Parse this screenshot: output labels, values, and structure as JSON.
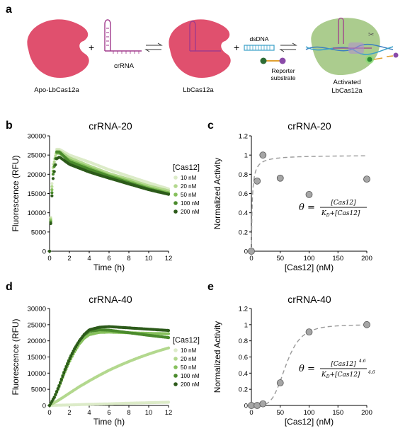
{
  "panels": {
    "a": "a",
    "b": "b",
    "c": "c",
    "d": "d",
    "e": "e"
  },
  "schematic": {
    "apo_label": "Apo-LbCas12a",
    "crrna_label": "crRNA",
    "lbcas_label": "LbCas12a",
    "dsdna_label": "dsDNA",
    "reporter_label_1": "Reporter",
    "reporter_label_2": "substrate",
    "activated_label_1": "Activated",
    "activated_label_2": "LbCas12a",
    "plus": "+",
    "colors": {
      "cas_pink": "#e0506e",
      "activated_green": "#9cc37a",
      "crrna_purple": "#a03a8c",
      "dsdna_blue": "#3aa0c8"
    }
  },
  "legend_title": "[Cas12]",
  "legend_entries": [
    "10 nM",
    "20 nM",
    "50 nM",
    "100 nM",
    "200 nM"
  ],
  "series_colors": [
    "#dcebc8",
    "#b3d88e",
    "#86c05c",
    "#4a8a2c",
    "#2c5a1a"
  ],
  "chart_data": [
    {
      "id": "b",
      "type": "scatter",
      "title": "crRNA-20",
      "xlabel": "Time (h)",
      "ylabel": "Fluorescence (RFU)",
      "xlim": [
        0,
        12
      ],
      "ylim": [
        0,
        30000
      ],
      "xticks": [
        0,
        2,
        4,
        6,
        8,
        10,
        12
      ],
      "yticks": [
        0,
        5000,
        10000,
        15000,
        20000,
        25000,
        30000
      ],
      "series": [
        {
          "name": "10 nM",
          "x": [
            0,
            0.3,
            0.7,
            1.0,
            2,
            4,
            6,
            8,
            10,
            12
          ],
          "y": [
            0,
            22000,
            26500,
            26500,
            25000,
            23200,
            21200,
            19500,
            17800,
            16200
          ]
        },
        {
          "name": "20 nM",
          "x": [
            0,
            0.3,
            0.7,
            1.0,
            2,
            4,
            6,
            8,
            10,
            12
          ],
          "y": [
            0,
            21000,
            26000,
            26000,
            24300,
            22200,
            20200,
            18700,
            17000,
            15700
          ]
        },
        {
          "name": "50 nM",
          "x": [
            0,
            0.3,
            0.7,
            1.0,
            2,
            4,
            6,
            8,
            10,
            12
          ],
          "y": [
            0,
            20000,
            25500,
            25500,
            23700,
            21700,
            19700,
            18200,
            16500,
            15200
          ]
        },
        {
          "name": "100 nM",
          "x": [
            0,
            0.3,
            0.7,
            1.0,
            2,
            4,
            6,
            8,
            10,
            12
          ],
          "y": [
            0,
            19000,
            25800,
            25800,
            23300,
            21300,
            19500,
            17800,
            16200,
            14900
          ]
        },
        {
          "name": "200 nM",
          "x": [
            0,
            0.3,
            0.7,
            1.0,
            2,
            4,
            6,
            8,
            10,
            12
          ],
          "y": [
            0,
            18000,
            24000,
            24500,
            22600,
            20600,
            19000,
            17500,
            16000,
            14800
          ]
        }
      ]
    },
    {
      "id": "c",
      "type": "scatter",
      "title": "crRNA-20",
      "xlabel": "[Cas12] (nM)",
      "ylabel": "Normalized Activity",
      "xlim": [
        0,
        200
      ],
      "ylim": [
        0,
        1.2
      ],
      "xticks": [
        0,
        50,
        100,
        150,
        200
      ],
      "yticks": [
        0,
        0.2,
        0.4,
        0.6,
        0.8,
        1,
        1.2
      ],
      "points": {
        "x": [
          0,
          10,
          20,
          50,
          100,
          200
        ],
        "y": [
          0,
          0.73,
          1.0,
          0.76,
          0.59,
          0.75
        ]
      },
      "fit": {
        "Kd": 1.5,
        "n": 1
      },
      "equation": {
        "lhs": "θ =",
        "num": "[Cas12]",
        "den_a": "K",
        "den_sub": "D",
        "den_b": "+[Cas12]",
        "exp": ""
      }
    },
    {
      "id": "d",
      "type": "scatter",
      "title": "crRNA-40",
      "xlabel": "Time (h)",
      "ylabel": "Fluorescence (RFU)",
      "xlim": [
        0,
        12
      ],
      "ylim": [
        0,
        30000
      ],
      "xticks": [
        0,
        2,
        4,
        6,
        8,
        10,
        12
      ],
      "yticks": [
        0,
        5000,
        10000,
        15000,
        20000,
        25000,
        30000
      ],
      "series": [
        {
          "name": "10 nM",
          "x": [
            0,
            2,
            4,
            6,
            8,
            10,
            12
          ],
          "y": [
            0,
            150,
            350,
            500,
            700,
            850,
            1000
          ]
        },
        {
          "name": "20 nM",
          "x": [
            0,
            1,
            2,
            3,
            4,
            5,
            6,
            7,
            8,
            9,
            10,
            11,
            12
          ],
          "y": [
            0,
            1800,
            3800,
            5800,
            7600,
            9300,
            10900,
            12300,
            13600,
            14800,
            15900,
            16900,
            17800
          ]
        },
        {
          "name": "50 nM",
          "x": [
            0,
            0.5,
            1,
            1.5,
            2,
            2.5,
            3,
            3.5,
            4,
            5,
            6,
            8,
            10,
            12
          ],
          "y": [
            0,
            2500,
            6000,
            10000,
            13500,
            16500,
            19000,
            20800,
            21900,
            22600,
            22700,
            22500,
            22300,
            22200
          ]
        },
        {
          "name": "100 nM",
          "x": [
            0,
            0.5,
            1,
            1.5,
            2,
            2.5,
            3,
            3.5,
            4,
            5,
            6,
            8,
            10,
            12
          ],
          "y": [
            0,
            2700,
            6500,
            10800,
            14500,
            17500,
            20000,
            21800,
            22900,
            23400,
            23300,
            22500,
            21700,
            21000
          ]
        },
        {
          "name": "200 nM",
          "x": [
            0,
            0.5,
            1,
            1.5,
            2,
            2.5,
            3,
            3.5,
            4,
            5,
            6,
            8,
            10,
            12
          ],
          "y": [
            0,
            2600,
            6300,
            10500,
            14200,
            17400,
            20000,
            22000,
            23400,
            24200,
            24400,
            24000,
            23600,
            23200
          ]
        }
      ]
    },
    {
      "id": "e",
      "type": "scatter",
      "title": "crRNA-40",
      "xlabel": "[Cas12] (nM)",
      "ylabel": "Normalized Activity",
      "xlim": [
        0,
        200
      ],
      "ylim": [
        0,
        1.2
      ],
      "xticks": [
        0,
        50,
        100,
        150,
        200
      ],
      "yticks": [
        0,
        0.2,
        0.4,
        0.6,
        0.8,
        1,
        1.2
      ],
      "points": {
        "x": [
          0,
          10,
          20,
          50,
          100,
          200
        ],
        "y": [
          0,
          0.0,
          0.02,
          0.28,
          0.91,
          1.0
        ]
      },
      "fit": {
        "Kd": 60,
        "n": 4.6
      },
      "equation": {
        "lhs": "θ =",
        "num": "[Cas12]",
        "den_a": "K",
        "den_sub": "D",
        "den_b": "+[Cas12]",
        "exp": "4.6"
      }
    }
  ]
}
